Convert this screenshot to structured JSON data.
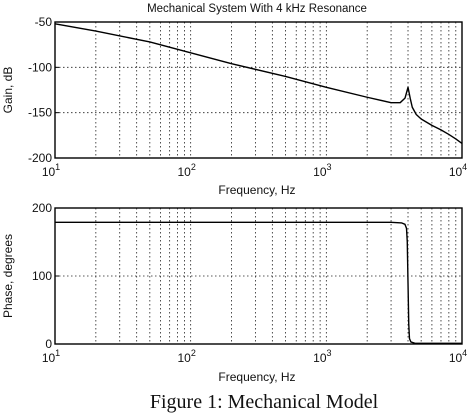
{
  "caption": "Figure 1:  Mechanical Model",
  "chart_data": [
    {
      "type": "line",
      "title": "Mechanical System With 4 kHz Resonance",
      "xlabel": "Frequency, Hz",
      "ylabel": "Gain, dB",
      "xscale": "log",
      "xlim": [
        10,
        10000
      ],
      "ylim": [
        -200,
        -50
      ],
      "grid": true,
      "x_ticks": [
        {
          "value": 10,
          "base": "10",
          "exp": "1"
        },
        {
          "value": 100,
          "base": "10",
          "exp": "2"
        },
        {
          "value": 1000,
          "base": "10",
          "exp": "3"
        },
        {
          "value": 10000,
          "base": "10",
          "exp": "4"
        }
      ],
      "y_ticks": [
        {
          "value": -50,
          "label": "-50"
        },
        {
          "value": -100,
          "label": "-100"
        },
        {
          "value": -150,
          "label": "-150"
        },
        {
          "value": -200,
          "label": "-200"
        }
      ],
      "series": [
        {
          "color": "#000000",
          "x": [
            10,
            20,
            50,
            100,
            200,
            500,
            1000,
            2000,
            3000,
            3500,
            3800,
            3950,
            4000,
            4050,
            4150,
            4300,
            4600,
            5000,
            6000,
            7000,
            8000,
            9000,
            10000
          ],
          "y": [
            -52,
            -60,
            -72,
            -84,
            -96,
            -110,
            -122,
            -133,
            -139,
            -139,
            -134,
            -125,
            -122,
            -126,
            -134,
            -144,
            -152,
            -157,
            -164,
            -169,
            -174,
            -179,
            -184
          ]
        }
      ]
    },
    {
      "type": "line",
      "title": "",
      "xlabel": "Frequency, Hz",
      "ylabel": "Phase, degrees",
      "xscale": "log",
      "xlim": [
        10,
        10000
      ],
      "ylim": [
        0,
        200
      ],
      "grid": true,
      "x_ticks": [
        {
          "value": 10,
          "base": "10",
          "exp": "1"
        },
        {
          "value": 100,
          "base": "10",
          "exp": "2"
        },
        {
          "value": 1000,
          "base": "10",
          "exp": "3"
        },
        {
          "value": 10000,
          "base": "10",
          "exp": "4"
        }
      ],
      "y_ticks": [
        {
          "value": 0,
          "label": "0"
        },
        {
          "value": 100,
          "label": "100"
        },
        {
          "value": 200,
          "label": "200"
        }
      ],
      "series": [
        {
          "color": "#000000",
          "x": [
            10,
            100,
            1000,
            3000,
            3600,
            3800,
            3900,
            3950,
            4000,
            4050,
            4100,
            4200,
            4500,
            6000,
            10000
          ],
          "y": [
            179,
            179,
            179,
            179,
            178,
            176,
            170,
            150,
            90,
            30,
            8,
            3,
            1,
            1,
            1
          ]
        }
      ]
    }
  ]
}
